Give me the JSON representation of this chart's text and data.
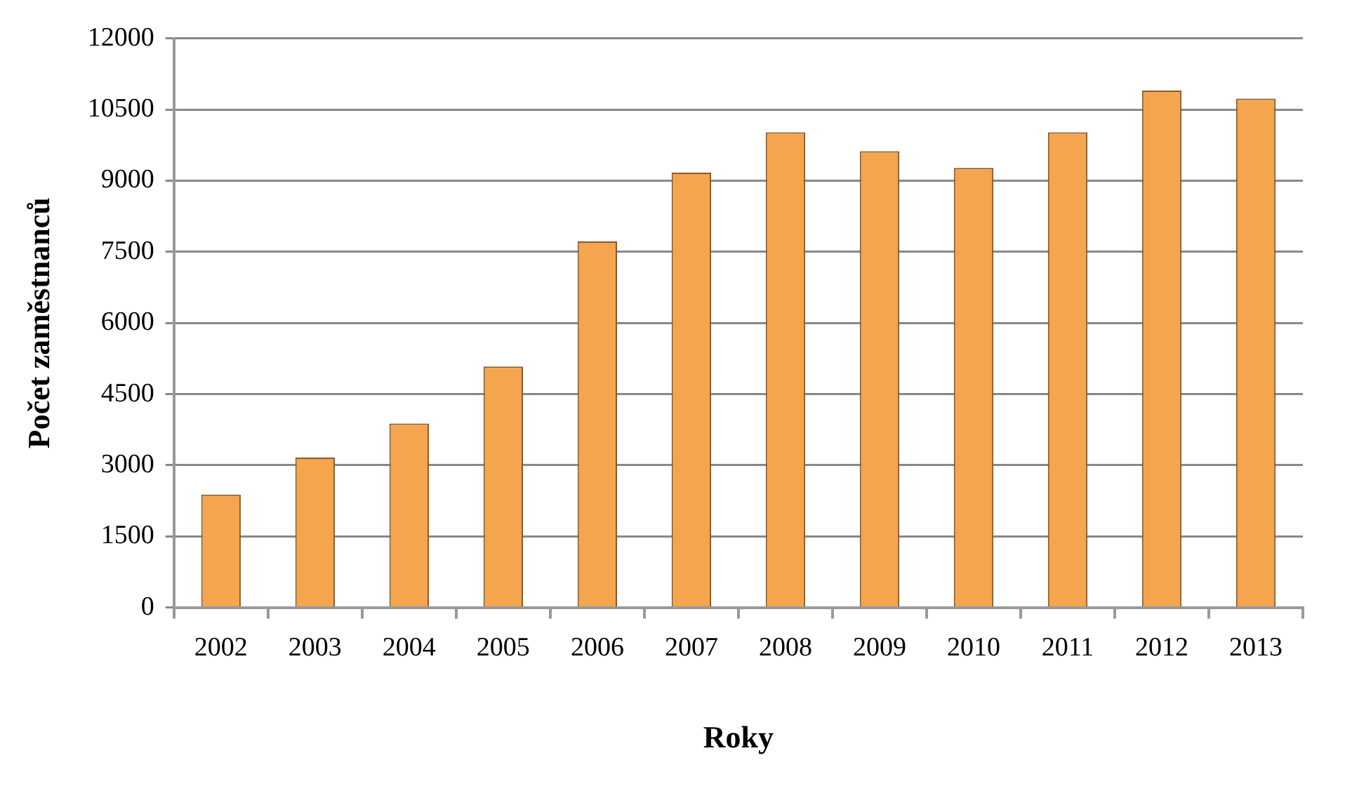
{
  "chart_data": {
    "type": "bar",
    "xlabel": "Roky",
    "ylabel": "Počet zaměstnanců",
    "categories": [
      "2002",
      "2003",
      "2004",
      "2005",
      "2006",
      "2007",
      "2008",
      "2009",
      "2010",
      "2011",
      "2012",
      "2013"
    ],
    "values": [
      2380,
      3160,
      3880,
      5080,
      7720,
      9170,
      10020,
      9620,
      9270,
      10020,
      10900,
      10730
    ],
    "color": "#f5a54e",
    "ylim": [
      0,
      12000
    ],
    "yticks": [
      0,
      1500,
      3000,
      4500,
      6000,
      7500,
      9000,
      10500,
      12000
    ],
    "grid": "y",
    "legend": false
  }
}
